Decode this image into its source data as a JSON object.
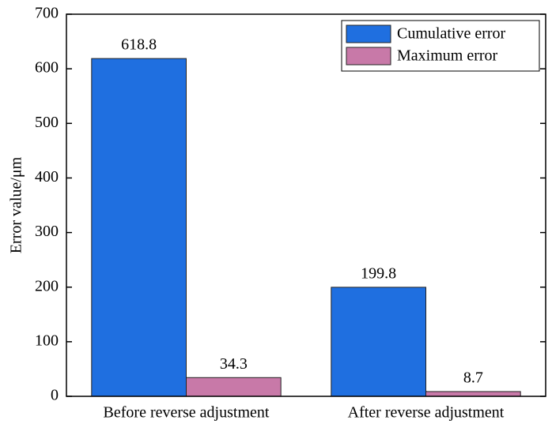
{
  "chart_data": {
    "type": "bar",
    "y_label": "Error value/μm",
    "categories": [
      "Before reverse adjustment",
      "After reverse adjustment"
    ],
    "series": [
      {
        "name": "Cumulative error",
        "color": "#1f6fe0",
        "values": [
          618.8,
          199.8
        ]
      },
      {
        "name": "Maximum error",
        "color": "#c879a8",
        "values": [
          34.3,
          8.7
        ]
      }
    ],
    "ylim": [
      0,
      700
    ],
    "yticks": [
      0,
      100,
      200,
      300,
      400,
      500,
      600,
      700
    ],
    "legend": "upper right",
    "show_value_labels": true
  }
}
